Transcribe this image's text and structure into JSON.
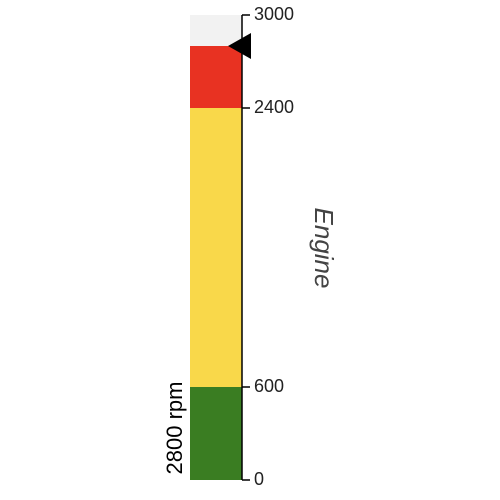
{
  "chart_data": {
    "type": "bullet-gauge",
    "title": "Engine",
    "value": 2800,
    "value_label": "2800 rpm",
    "unit": "rpm",
    "ylim": [
      0,
      3000
    ],
    "ticks": [
      0,
      600,
      2400,
      3000
    ],
    "tick_labels": [
      "0",
      "600",
      "2400",
      "3000"
    ],
    "bands": [
      {
        "from": 0,
        "to": 600,
        "color": "#3a7d22"
      },
      {
        "from": 600,
        "to": 2400,
        "color": "#f9d84a"
      },
      {
        "from": 2400,
        "to": 2800,
        "color": "#e83222"
      },
      {
        "from": 2800,
        "to": 3000,
        "color": "#f2f2f2"
      }
    ],
    "marker_color": "#000000",
    "axis_color": "#000000",
    "grid": false
  }
}
